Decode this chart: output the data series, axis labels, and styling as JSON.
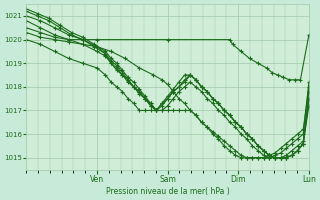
{
  "bg_color": "#c8ead8",
  "plot_bg_color": "#d0edd8",
  "grid_color": "#a0c8a8",
  "line_color": "#1a6b1a",
  "marker_color": "#1a6b1a",
  "xlabel": "Pression niveau de la mer( hPa )",
  "ylim": [
    1014.5,
    1021.5
  ],
  "yticks": [
    1015,
    1016,
    1017,
    1018,
    1019,
    1020,
    1021
  ],
  "day_labels": [
    "Ven",
    "Sam",
    "Dim",
    "Lun"
  ],
  "day_positions": [
    0.25,
    0.5,
    0.75,
    1.0
  ],
  "lines": [
    {
      "points": [
        [
          0,
          1020.5
        ],
        [
          0.05,
          1020.3
        ],
        [
          0.1,
          1020.1
        ],
        [
          0.15,
          1020.0
        ],
        [
          0.25,
          1020.0
        ],
        [
          0.5,
          1020.0
        ],
        [
          0.72,
          1020.0
        ],
        [
          0.73,
          1019.8
        ],
        [
          0.76,
          1019.5
        ],
        [
          0.79,
          1019.2
        ],
        [
          0.82,
          1019.0
        ],
        [
          0.85,
          1018.8
        ],
        [
          0.87,
          1018.6
        ],
        [
          0.89,
          1018.5
        ],
        [
          0.91,
          1018.4
        ],
        [
          0.93,
          1018.3
        ],
        [
          0.95,
          1018.3
        ],
        [
          0.97,
          1018.3
        ],
        [
          1.0,
          1020.2
        ]
      ]
    },
    {
      "points": [
        [
          0,
          1020.3
        ],
        [
          0.05,
          1020.1
        ],
        [
          0.1,
          1020.0
        ],
        [
          0.15,
          1019.9
        ],
        [
          0.2,
          1019.8
        ],
        [
          0.25,
          1019.7
        ],
        [
          0.3,
          1019.5
        ],
        [
          0.35,
          1019.2
        ],
        [
          0.4,
          1018.8
        ],
        [
          0.45,
          1018.5
        ],
        [
          0.48,
          1018.3
        ],
        [
          0.5,
          1018.1
        ],
        [
          0.52,
          1017.8
        ],
        [
          0.54,
          1017.5
        ],
        [
          0.56,
          1017.3
        ],
        [
          0.58,
          1017.0
        ],
        [
          0.6,
          1016.8
        ],
        [
          0.62,
          1016.5
        ],
        [
          0.64,
          1016.3
        ],
        [
          0.66,
          1016.1
        ],
        [
          0.68,
          1015.9
        ],
        [
          0.7,
          1015.7
        ],
        [
          0.72,
          1015.5
        ],
        [
          0.74,
          1015.3
        ],
        [
          0.76,
          1015.1
        ],
        [
          0.78,
          1015.0
        ],
        [
          0.8,
          1015.0
        ],
        [
          0.82,
          1015.0
        ],
        [
          0.84,
          1015.0
        ],
        [
          0.86,
          1015.0
        ],
        [
          0.88,
          1015.1
        ],
        [
          0.9,
          1015.2
        ],
        [
          0.92,
          1015.4
        ],
        [
          0.94,
          1015.6
        ],
        [
          0.96,
          1015.8
        ],
        [
          0.98,
          1016.0
        ],
        [
          1.0,
          1018.2
        ]
      ]
    },
    {
      "points": [
        [
          0,
          1020.8
        ],
        [
          0.05,
          1020.5
        ],
        [
          0.1,
          1020.2
        ],
        [
          0.15,
          1020.0
        ],
        [
          0.2,
          1019.8
        ],
        [
          0.25,
          1019.5
        ],
        [
          0.28,
          1019.3
        ],
        [
          0.3,
          1019.0
        ],
        [
          0.32,
          1018.7
        ],
        [
          0.34,
          1018.5
        ],
        [
          0.36,
          1018.3
        ],
        [
          0.38,
          1018.0
        ],
        [
          0.4,
          1017.8
        ],
        [
          0.42,
          1017.5
        ],
        [
          0.44,
          1017.2
        ],
        [
          0.46,
          1017.0
        ],
        [
          0.48,
          1017.0
        ],
        [
          0.5,
          1017.2
        ],
        [
          0.52,
          1017.5
        ],
        [
          0.54,
          1017.8
        ],
        [
          0.56,
          1018.0
        ],
        [
          0.58,
          1018.2
        ],
        [
          0.6,
          1018.0
        ],
        [
          0.62,
          1017.8
        ],
        [
          0.64,
          1017.5
        ],
        [
          0.66,
          1017.3
        ],
        [
          0.68,
          1017.0
        ],
        [
          0.7,
          1016.8
        ],
        [
          0.72,
          1016.5
        ],
        [
          0.74,
          1016.3
        ],
        [
          0.76,
          1016.0
        ],
        [
          0.78,
          1015.8
        ],
        [
          0.8,
          1015.5
        ],
        [
          0.82,
          1015.3
        ],
        [
          0.84,
          1015.1
        ],
        [
          0.86,
          1015.0
        ],
        [
          0.88,
          1015.0
        ],
        [
          0.9,
          1015.0
        ],
        [
          0.92,
          1015.1
        ],
        [
          0.94,
          1015.3
        ],
        [
          0.96,
          1015.5
        ],
        [
          0.98,
          1015.7
        ],
        [
          1.0,
          1017.5
        ]
      ]
    },
    {
      "points": [
        [
          0,
          1021.0
        ],
        [
          0.05,
          1020.8
        ],
        [
          0.1,
          1020.5
        ],
        [
          0.15,
          1020.2
        ],
        [
          0.2,
          1020.0
        ],
        [
          0.25,
          1019.7
        ],
        [
          0.28,
          1019.4
        ],
        [
          0.3,
          1019.1
        ],
        [
          0.32,
          1018.9
        ],
        [
          0.34,
          1018.6
        ],
        [
          0.36,
          1018.3
        ],
        [
          0.38,
          1018.0
        ],
        [
          0.4,
          1017.8
        ],
        [
          0.42,
          1017.5
        ],
        [
          0.44,
          1017.3
        ],
        [
          0.46,
          1017.0
        ],
        [
          0.48,
          1017.2
        ],
        [
          0.5,
          1017.5
        ],
        [
          0.52,
          1017.8
        ],
        [
          0.54,
          1018.0
        ],
        [
          0.56,
          1018.2
        ],
        [
          0.58,
          1018.5
        ],
        [
          0.6,
          1018.3
        ],
        [
          0.62,
          1018.0
        ],
        [
          0.64,
          1017.8
        ],
        [
          0.66,
          1017.5
        ],
        [
          0.68,
          1017.3
        ],
        [
          0.7,
          1017.0
        ],
        [
          0.72,
          1016.8
        ],
        [
          0.74,
          1016.5
        ],
        [
          0.76,
          1016.3
        ],
        [
          0.78,
          1016.0
        ],
        [
          0.8,
          1015.8
        ],
        [
          0.82,
          1015.5
        ],
        [
          0.84,
          1015.3
        ],
        [
          0.86,
          1015.1
        ],
        [
          0.88,
          1015.0
        ],
        [
          0.9,
          1015.0
        ],
        [
          0.92,
          1015.0
        ],
        [
          0.94,
          1015.1
        ],
        [
          0.96,
          1015.3
        ],
        [
          0.98,
          1015.6
        ],
        [
          1.0,
          1017.2
        ]
      ]
    },
    {
      "points": [
        [
          0,
          1021.2
        ],
        [
          0.04,
          1021.0
        ],
        [
          0.08,
          1020.8
        ],
        [
          0.12,
          1020.5
        ],
        [
          0.16,
          1020.2
        ],
        [
          0.2,
          1020.0
        ],
        [
          0.24,
          1019.7
        ],
        [
          0.28,
          1019.4
        ],
        [
          0.3,
          1019.0
        ],
        [
          0.32,
          1018.8
        ],
        [
          0.34,
          1018.5
        ],
        [
          0.36,
          1018.2
        ],
        [
          0.38,
          1018.0
        ],
        [
          0.4,
          1017.7
        ],
        [
          0.42,
          1017.5
        ],
        [
          0.44,
          1017.2
        ],
        [
          0.46,
          1017.0
        ],
        [
          0.48,
          1017.3
        ],
        [
          0.5,
          1017.5
        ],
        [
          0.52,
          1017.8
        ],
        [
          0.54,
          1018.0
        ],
        [
          0.56,
          1018.3
        ],
        [
          0.58,
          1018.5
        ],
        [
          0.6,
          1018.3
        ],
        [
          0.62,
          1018.0
        ],
        [
          0.64,
          1017.8
        ],
        [
          0.66,
          1017.5
        ],
        [
          0.68,
          1017.3
        ],
        [
          0.7,
          1017.0
        ],
        [
          0.72,
          1016.8
        ],
        [
          0.74,
          1016.5
        ],
        [
          0.76,
          1016.3
        ],
        [
          0.78,
          1016.0
        ],
        [
          0.8,
          1015.8
        ],
        [
          0.82,
          1015.5
        ],
        [
          0.84,
          1015.3
        ],
        [
          0.86,
          1015.1
        ],
        [
          0.88,
          1015.0
        ],
        [
          0.9,
          1015.0
        ],
        [
          0.92,
          1015.0
        ],
        [
          0.94,
          1015.1
        ],
        [
          0.96,
          1015.3
        ],
        [
          0.98,
          1015.6
        ],
        [
          1.0,
          1017.5
        ]
      ]
    },
    {
      "points": [
        [
          0,
          1021.3
        ],
        [
          0.04,
          1021.1
        ],
        [
          0.08,
          1020.9
        ],
        [
          0.12,
          1020.6
        ],
        [
          0.16,
          1020.3
        ],
        [
          0.2,
          1020.1
        ],
        [
          0.24,
          1019.8
        ],
        [
          0.28,
          1019.5
        ],
        [
          0.3,
          1019.2
        ],
        [
          0.32,
          1019.0
        ],
        [
          0.34,
          1018.7
        ],
        [
          0.36,
          1018.4
        ],
        [
          0.38,
          1018.2
        ],
        [
          0.4,
          1017.9
        ],
        [
          0.42,
          1017.6
        ],
        [
          0.44,
          1017.3
        ],
        [
          0.46,
          1017.0
        ],
        [
          0.48,
          1017.3
        ],
        [
          0.5,
          1017.6
        ],
        [
          0.52,
          1017.9
        ],
        [
          0.54,
          1018.2
        ],
        [
          0.56,
          1018.5
        ],
        [
          0.58,
          1018.5
        ],
        [
          0.6,
          1018.3
        ],
        [
          0.62,
          1018.0
        ],
        [
          0.64,
          1017.8
        ],
        [
          0.66,
          1017.5
        ],
        [
          0.68,
          1017.3
        ],
        [
          0.7,
          1017.0
        ],
        [
          0.72,
          1016.8
        ],
        [
          0.74,
          1016.5
        ],
        [
          0.76,
          1016.3
        ],
        [
          0.78,
          1016.0
        ],
        [
          0.8,
          1015.8
        ],
        [
          0.82,
          1015.5
        ],
        [
          0.84,
          1015.3
        ],
        [
          0.86,
          1015.1
        ],
        [
          0.88,
          1015.0
        ],
        [
          0.9,
          1015.0
        ],
        [
          0.92,
          1015.0
        ],
        [
          0.94,
          1015.1
        ],
        [
          0.96,
          1015.3
        ],
        [
          0.98,
          1015.6
        ],
        [
          1.0,
          1017.8
        ]
      ]
    },
    {
      "points": [
        [
          0,
          1020.0
        ],
        [
          0.05,
          1019.8
        ],
        [
          0.1,
          1019.5
        ],
        [
          0.15,
          1019.2
        ],
        [
          0.2,
          1019.0
        ],
        [
          0.25,
          1018.8
        ],
        [
          0.28,
          1018.5
        ],
        [
          0.3,
          1018.2
        ],
        [
          0.32,
          1018.0
        ],
        [
          0.34,
          1017.8
        ],
        [
          0.36,
          1017.5
        ],
        [
          0.38,
          1017.3
        ],
        [
          0.4,
          1017.0
        ],
        [
          0.42,
          1017.0
        ],
        [
          0.44,
          1017.0
        ],
        [
          0.46,
          1017.0
        ],
        [
          0.48,
          1017.0
        ],
        [
          0.5,
          1017.0
        ],
        [
          0.52,
          1017.0
        ],
        [
          0.54,
          1017.0
        ],
        [
          0.56,
          1017.0
        ],
        [
          0.58,
          1017.0
        ],
        [
          0.6,
          1016.8
        ],
        [
          0.62,
          1016.5
        ],
        [
          0.64,
          1016.3
        ],
        [
          0.66,
          1016.0
        ],
        [
          0.68,
          1015.8
        ],
        [
          0.7,
          1015.5
        ],
        [
          0.72,
          1015.3
        ],
        [
          0.74,
          1015.1
        ],
        [
          0.76,
          1015.0
        ],
        [
          0.78,
          1015.0
        ],
        [
          0.8,
          1015.0
        ],
        [
          0.82,
          1015.0
        ],
        [
          0.84,
          1015.0
        ],
        [
          0.86,
          1015.1
        ],
        [
          0.88,
          1015.2
        ],
        [
          0.9,
          1015.4
        ],
        [
          0.92,
          1015.6
        ],
        [
          0.94,
          1015.8
        ],
        [
          0.96,
          1016.0
        ],
        [
          0.98,
          1016.2
        ],
        [
          1.0,
          1018.0
        ]
      ]
    }
  ]
}
